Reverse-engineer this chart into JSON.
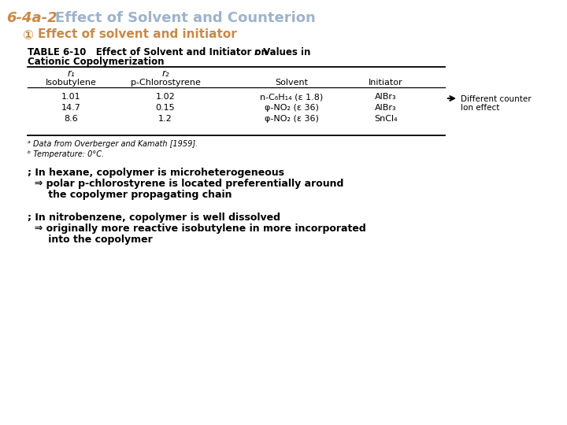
{
  "title_part1": "6-4a-2",
  "title_part2": "Effect of Solvent and Counterion",
  "title_color1": "#CC8844",
  "title_color2": "#9EB3CC",
  "subtitle_symbol": "①",
  "subtitle_text": "Effect of solvent and initiator",
  "subtitle_color": "#CC8844",
  "table_caption_bold": "TABLE 6-10   Effect of Solvent and Initiator on ",
  "table_caption_italic": "r",
  "table_caption_rest": " Values in",
  "table_caption2": "Cationic Copolymerization",
  "col_r1_top": "r₁",
  "col_r1_bot": "Isobutylene",
  "col_r2_top": "r₂",
  "col_r2_bot": "p-Chlorostyrene",
  "col3": "Solvent",
  "col4": "Initiator",
  "table_data": [
    [
      "1.01",
      "1.02",
      "n-C₆H₁₄ (ε 1.8)",
      "AlBr₃"
    ],
    [
      "14.7",
      "0.15",
      "φ-NO₂ (ε 36)",
      "AlBr₃"
    ],
    [
      "8.6",
      "1.2",
      "φ-NO₂ (ε 36)",
      "SnCl₄"
    ]
  ],
  "footnote1": "ᵃ Data from Overberger and Kamath [1959].",
  "footnote2": "ᵇ Temperature: 0°C.",
  "arrow_label1": "Different counter",
  "arrow_label2": "Ion effect",
  "text1_line1": "; In hexane, copolymer is microheterogeneous",
  "text1_line2": "  ⇒ polar p-chlorostyrene is located preferentially around",
  "text1_line3": "      the copolymer propagating chain",
  "text2_line1": "; In nitrobenzene, copolymer is well dissolved",
  "text2_line2": "  ⇒ originally more reactive isobutylene in more incorporated",
  "text2_line3": "      into the copolymer",
  "bg_color": "#FFFFFF",
  "text_color": "#000000",
  "figsize": [
    7.2,
    5.4
  ],
  "dpi": 100
}
